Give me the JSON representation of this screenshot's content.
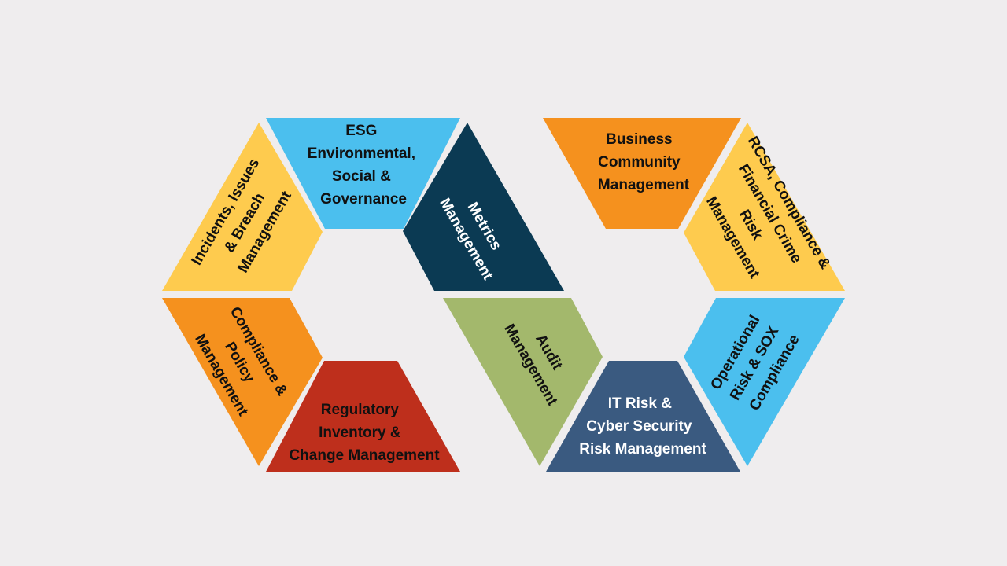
{
  "segments": [
    {
      "id": "esg",
      "label": "ESG Environmental, Social & Governance",
      "lines": [
        "ESG",
        "Environmental,",
        "Social &",
        "Governance"
      ],
      "color": "#4bbfee",
      "text_color": "#111111"
    },
    {
      "id": "metrics",
      "label": "Metrics Management",
      "lines": [
        "Metrics",
        "Management"
      ],
      "color": "#0b3a53",
      "text_color": "#ffffff"
    },
    {
      "id": "incidents",
      "label": "Incidents, Issues & Breach Management",
      "lines": [
        "Incidents, Issues",
        "& Breach",
        "Management"
      ],
      "color": "#fecb4e",
      "text_color": "#111111"
    },
    {
      "id": "compliance-policy",
      "label": "Compliance & Policy Management",
      "lines": [
        "Compliance &",
        "Policy",
        "Management"
      ],
      "color": "#f5911e",
      "text_color": "#111111"
    },
    {
      "id": "regulatory",
      "label": "Regulatory Inventory & Change Management",
      "lines": [
        "Regulatory",
        "Inventory &",
        "Change Management"
      ],
      "color": "#be2f1c",
      "text_color": "#111111"
    },
    {
      "id": "audit",
      "label": "Audit Management",
      "lines": [
        "Audit",
        "Management"
      ],
      "color": "#a3b86c",
      "text_color": "#111111"
    },
    {
      "id": "business-community",
      "label": "Business Community Management",
      "lines": [
        "Business",
        "Community",
        "Management"
      ],
      "color": "#f5911e",
      "text_color": "#111111"
    },
    {
      "id": "rcsa",
      "label": "RCSA, Compliance & Financial Crime Risk Management",
      "lines": [
        "RCSA, Compliance &",
        "Financial Crime",
        "Risk",
        "Management"
      ],
      "color": "#fecb4e",
      "text_color": "#111111"
    },
    {
      "id": "operational-risk",
      "label": "Operational Risk & SOX Compliance",
      "lines": [
        "Operational",
        "Risk & SOX",
        "Compliance"
      ],
      "color": "#4bbfee",
      "text_color": "#111111"
    },
    {
      "id": "it-risk",
      "label": "IT Risk & Cyber Security Risk Management",
      "lines": [
        "IT Risk &",
        "Cyber Security",
        "Risk Management"
      ],
      "color": "#3a5a80",
      "text_color": "#ffffff"
    }
  ]
}
